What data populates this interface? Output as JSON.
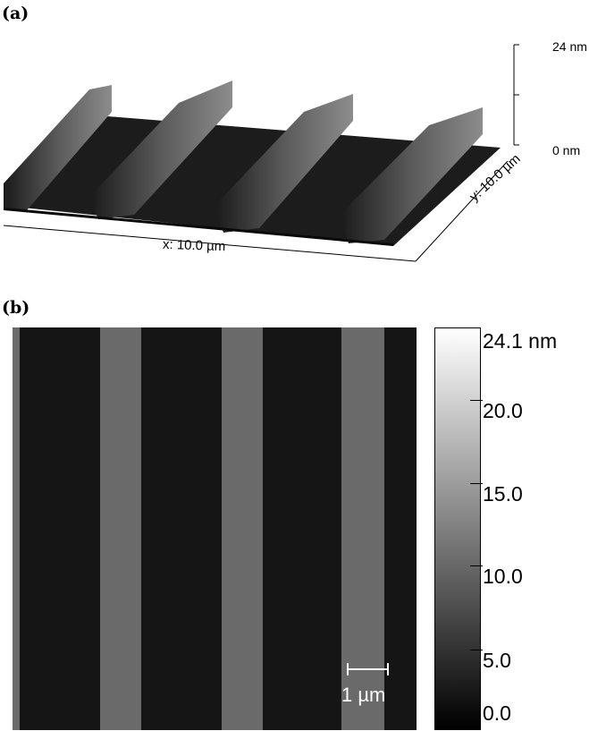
{
  "panel_a": {
    "label": "(a)",
    "z_max": "24 nm",
    "z_min": "0 nm",
    "x_axis": "x: 10.0 µm",
    "y_axis": "y: 10.0 µm"
  },
  "panel_b": {
    "label": "(b)",
    "scale_bar": "1 µm",
    "colorbar": {
      "max_label": "24.1 nm",
      "ticks": [
        "20.0",
        "15.0",
        "10.0",
        "5.0",
        "0.0"
      ]
    }
  },
  "colors": {
    "background": "#151515",
    "stripe": "#6a6a6a"
  }
}
